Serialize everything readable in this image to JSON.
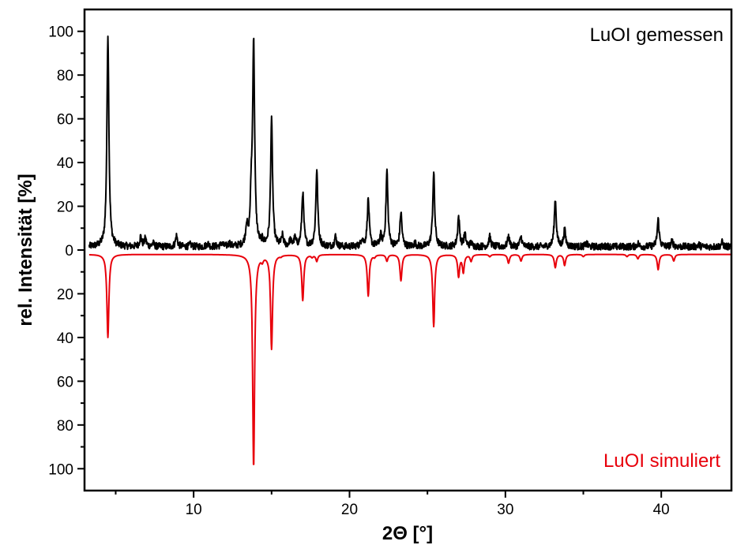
{
  "chart_data": {
    "type": "line",
    "title": "",
    "xlabel": "2Θ [°]",
    "ylabel": "rel. Intensität [%]",
    "xlim": [
      3.0,
      44.5
    ],
    "ylim": [
      -110,
      110
    ],
    "x_ticks": [
      10,
      20,
      30,
      40
    ],
    "y_tick_values": [
      -100,
      -80,
      -60,
      -40,
      -20,
      0,
      20,
      40,
      60,
      80,
      100
    ],
    "y_tick_labels": [
      "100",
      "80",
      "60",
      "40",
      "20",
      "0",
      "20",
      "40",
      "60",
      "80",
      "100"
    ],
    "grid": false,
    "series": [
      {
        "name": "LuOI gemessen",
        "color": "#000000",
        "baseline": 1.5,
        "peaks": [
          [
            4.5,
            98.5
          ],
          [
            6.6,
            6
          ],
          [
            6.9,
            5
          ],
          [
            7.4,
            3
          ],
          [
            8.9,
            6.5
          ],
          [
            9.8,
            2.5
          ],
          [
            10.9,
            3
          ],
          [
            11.8,
            3
          ],
          [
            12.3,
            3
          ],
          [
            13.4,
            10
          ],
          [
            13.7,
            22
          ],
          [
            13.85,
            93
          ],
          [
            14.4,
            3
          ],
          [
            15.0,
            59
          ],
          [
            15.7,
            6
          ],
          [
            16.2,
            4
          ],
          [
            16.5,
            5
          ],
          [
            17.0,
            26
          ],
          [
            17.9,
            37
          ],
          [
            19.1,
            6
          ],
          [
            20.8,
            5
          ],
          [
            21.2,
            23
          ],
          [
            22.0,
            6
          ],
          [
            22.4,
            36
          ],
          [
            23.3,
            17
          ],
          [
            24.2,
            3
          ],
          [
            25.4,
            35
          ],
          [
            27.0,
            15
          ],
          [
            27.4,
            7
          ],
          [
            27.8,
            3
          ],
          [
            29.0,
            6
          ],
          [
            30.2,
            6
          ],
          [
            31.0,
            6
          ],
          [
            33.2,
            23
          ],
          [
            33.8,
            9
          ],
          [
            35.2,
            3
          ],
          [
            36.5,
            2
          ],
          [
            38.5,
            3
          ],
          [
            39.8,
            14
          ],
          [
            40.7,
            4
          ],
          [
            42.4,
            2.5
          ],
          [
            43.9,
            3.5
          ]
        ]
      },
      {
        "name": "LuOI simuliert",
        "color": "#e8000b",
        "baseline": -2,
        "peaks": [
          [
            4.5,
            -40
          ],
          [
            9.0,
            -2
          ],
          [
            13.85,
            -99.5
          ],
          [
            14.4,
            -4
          ],
          [
            15.0,
            -45
          ],
          [
            15.6,
            -2.5
          ],
          [
            17.0,
            -23
          ],
          [
            17.6,
            -3
          ],
          [
            17.9,
            -5
          ],
          [
            21.2,
            -21
          ],
          [
            21.6,
            -3
          ],
          [
            22.4,
            -5
          ],
          [
            23.3,
            -14
          ],
          [
            25.4,
            -35
          ],
          [
            27.0,
            -12
          ],
          [
            27.3,
            -10
          ],
          [
            27.8,
            -5
          ],
          [
            29.0,
            -3
          ],
          [
            30.2,
            -6
          ],
          [
            31.0,
            -5
          ],
          [
            33.2,
            -8
          ],
          [
            33.8,
            -7
          ],
          [
            35.0,
            -3
          ],
          [
            36.0,
            -2
          ],
          [
            37.8,
            -3
          ],
          [
            38.5,
            -4
          ],
          [
            39.8,
            -9
          ],
          [
            40.8,
            -5
          ],
          [
            43.5,
            -2
          ]
        ]
      }
    ]
  }
}
